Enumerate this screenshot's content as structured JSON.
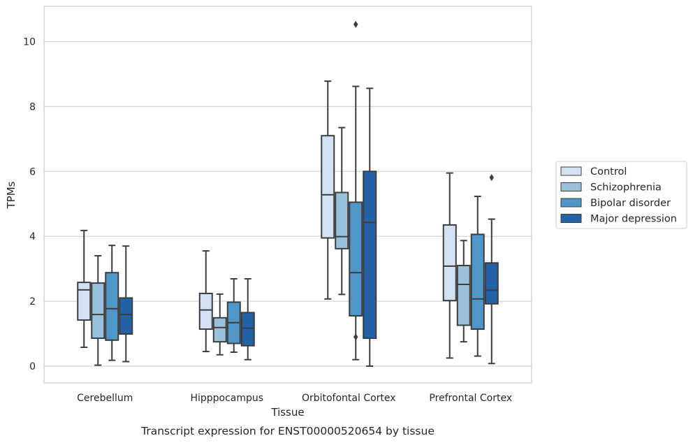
{
  "chart_data": {
    "type": "box",
    "caption": "Transcript expression for ENST00000520654 by tissue",
    "xlabel": "Tissue",
    "ylabel": "TPMs",
    "ylim": [
      -0.5,
      11.1
    ],
    "yticks": [
      0,
      2,
      4,
      6,
      8,
      10
    ],
    "grid": "horizontal",
    "legend_position": "right",
    "categories": [
      "Cerebellum",
      "Hipppocampus",
      "Orbitofontal Cortex",
      "Prefrontal Cortex"
    ],
    "series": [
      {
        "name": "Control",
        "color": "#d2e2f2",
        "boxes": [
          {
            "whislo": 0.58,
            "q1": 1.42,
            "med": 2.35,
            "q3": 2.58,
            "whishi": 4.18,
            "fliers": []
          },
          {
            "whislo": 0.45,
            "q1": 1.14,
            "med": 1.73,
            "q3": 2.24,
            "whishi": 3.55,
            "fliers": []
          },
          {
            "whislo": 2.07,
            "q1": 3.95,
            "med": 5.28,
            "q3": 7.1,
            "whishi": 8.78,
            "fliers": []
          },
          {
            "whislo": 0.25,
            "q1": 2.02,
            "med": 3.08,
            "q3": 4.35,
            "whishi": 5.95,
            "fliers": []
          }
        ]
      },
      {
        "name": "Schizophrenia",
        "color": "#9ac1dc",
        "boxes": [
          {
            "whislo": 0.03,
            "q1": 0.86,
            "med": 1.59,
            "q3": 2.56,
            "whishi": 3.4,
            "fliers": []
          },
          {
            "whislo": 0.35,
            "q1": 0.75,
            "med": 1.19,
            "q3": 1.49,
            "whishi": 2.22,
            "fliers": []
          },
          {
            "whislo": 2.21,
            "q1": 3.62,
            "med": 3.99,
            "q3": 5.35,
            "whishi": 7.35,
            "fliers": []
          },
          {
            "whislo": 0.75,
            "q1": 1.26,
            "med": 2.52,
            "q3": 3.1,
            "whishi": 3.87,
            "fliers": []
          }
        ]
      },
      {
        "name": "Bipolar disorder",
        "color": "#5096c8",
        "boxes": [
          {
            "whislo": 0.18,
            "q1": 0.8,
            "med": 1.77,
            "q3": 2.88,
            "whishi": 3.72,
            "fliers": []
          },
          {
            "whislo": 0.43,
            "q1": 0.7,
            "med": 1.34,
            "q3": 1.97,
            "whishi": 2.69,
            "fliers": []
          },
          {
            "whislo": 0.2,
            "q1": 1.55,
            "med": 2.88,
            "q3": 5.05,
            "whishi": 8.62,
            "fliers": [
              0.9,
              10.53
            ]
          },
          {
            "whislo": 0.31,
            "q1": 1.14,
            "med": 2.07,
            "q3": 4.06,
            "whishi": 5.23,
            "fliers": []
          }
        ]
      },
      {
        "name": "Major depression",
        "color": "#2462a7",
        "boxes": [
          {
            "whislo": 0.14,
            "q1": 0.99,
            "med": 1.59,
            "q3": 2.1,
            "whishi": 3.7,
            "fliers": []
          },
          {
            "whislo": 0.2,
            "q1": 0.63,
            "med": 1.17,
            "q3": 1.65,
            "whishi": 2.69,
            "fliers": []
          },
          {
            "whislo": 0.0,
            "q1": 0.86,
            "med": 4.43,
            "q3": 6.0,
            "whishi": 8.56,
            "fliers": []
          },
          {
            "whislo": 0.08,
            "q1": 1.92,
            "med": 2.34,
            "q3": 3.18,
            "whishi": 4.53,
            "fliers": [
              5.81
            ]
          }
        ]
      }
    ]
  }
}
